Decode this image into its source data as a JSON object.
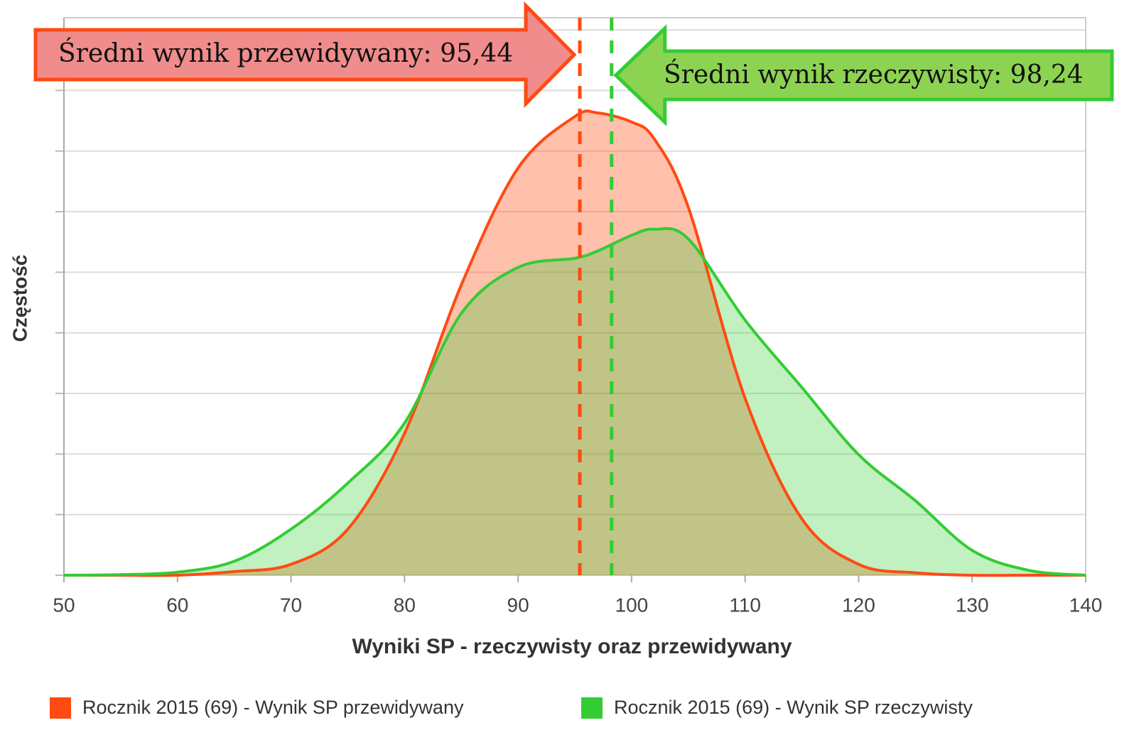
{
  "chart_data": {
    "type": "area",
    "x_label": "Wyniki SP - rzeczywisty oraz przewidywany",
    "y_label": "Częstość",
    "x": [
      50,
      55,
      60,
      65,
      70,
      75,
      80,
      85,
      90,
      95,
      97,
      100,
      102,
      105,
      110,
      115,
      120,
      125,
      130,
      135,
      140
    ],
    "series": [
      {
        "name": "Rocznik 2015 (69) - Wynik SP przewidywany",
        "color": "#ff4a12",
        "values": [
          0,
          0,
          0,
          0.06,
          0.18,
          0.76,
          2.34,
          4.79,
          6.72,
          7.57,
          7.63,
          7.48,
          7.2,
          6.07,
          2.92,
          0.93,
          0.18,
          0.04,
          0,
          0,
          0
        ]
      },
      {
        "name": "Rocznik 2015 (69) - Wynik SP rzeczywisty",
        "color": "#33cc33",
        "values": [
          0,
          0.01,
          0.05,
          0.23,
          0.76,
          1.52,
          2.51,
          4.32,
          5.08,
          5.23,
          5.35,
          5.61,
          5.71,
          5.55,
          4.21,
          3.1,
          1.99,
          1.23,
          0.41,
          0.08,
          0
        ]
      }
    ],
    "annotations": [
      {
        "text": "Średni wynik przewidywany: 95,44",
        "x": 95.44,
        "color": "#ff4a12"
      },
      {
        "text": "Średni wynik rzeczywisty: 98,24",
        "x": 98.24,
        "color": "#33cc33"
      }
    ],
    "xlim": [
      50,
      140
    ],
    "xticks": [
      50,
      60,
      70,
      80,
      90,
      100,
      110,
      120,
      130,
      140
    ],
    "ylim": [
      0,
      9.2
    ],
    "yticks": [
      0,
      1,
      2,
      3,
      4,
      5,
      6,
      7,
      8,
      9
    ],
    "grid": true
  }
}
